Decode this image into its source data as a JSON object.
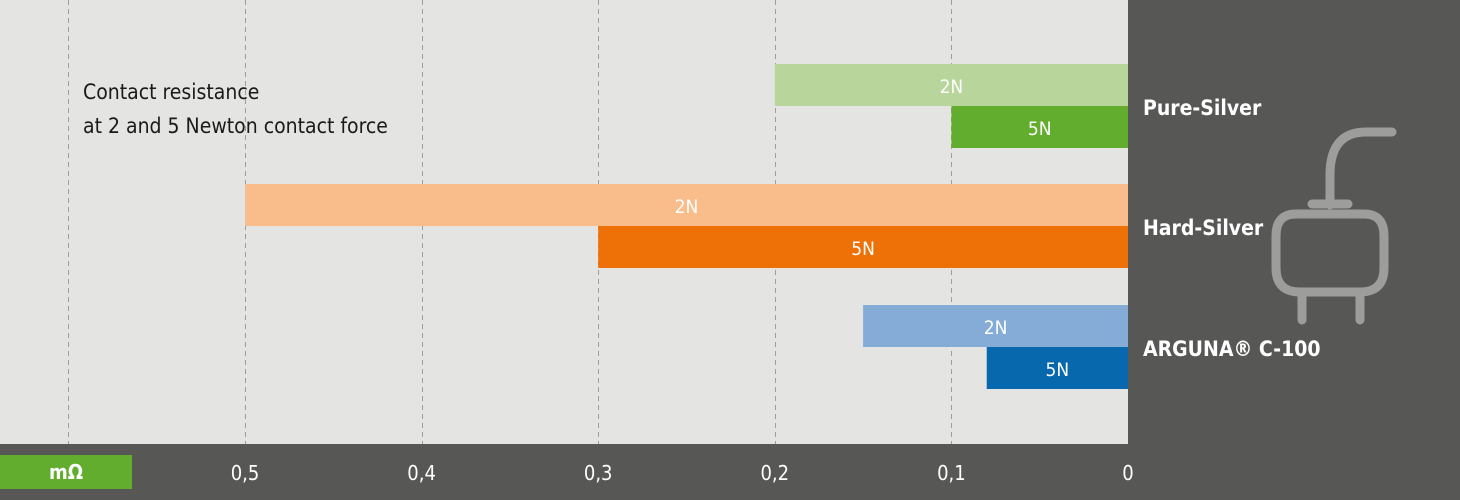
{
  "chart_data": {
    "type": "bar",
    "orientation": "horizontal",
    "x_direction": "reversed",
    "title_lines": [
      "Contact resistance",
      "at 2 and 5 Newton contact force"
    ],
    "unit": "mΩ",
    "xlim": [
      0,
      0.6
    ],
    "xticks": [
      {
        "value": 0.5,
        "label": "0,5"
      },
      {
        "value": 0.4,
        "label": "0,4"
      },
      {
        "value": 0.3,
        "label": "0,3"
      },
      {
        "value": 0.2,
        "label": "0,2"
      },
      {
        "value": 0.1,
        "label": "0,1"
      },
      {
        "value": 0,
        "label": "0"
      }
    ],
    "grid": true,
    "categories": [
      {
        "name": "Pure-Silver",
        "bars": [
          {
            "label": "2N",
            "value": 0.2,
            "color": "#b8d69b"
          },
          {
            "label": "5N",
            "value": 0.1,
            "color": "#62ad2e"
          }
        ]
      },
      {
        "name": "Hard-Silver",
        "bars": [
          {
            "label": "2N",
            "value": 0.5,
            "color": "#f8bd8b"
          },
          {
            "label": "5N",
            "value": 0.3,
            "color": "#ed7106"
          }
        ]
      },
      {
        "name": "ARGUNA® C-100",
        "bars": [
          {
            "label": "2N",
            "value": 0.15,
            "color": "#84acd6"
          },
          {
            "label": "5N",
            "value": 0.08,
            "color": "#0768ae"
          }
        ]
      }
    ]
  },
  "colors": {
    "background": "#e4e4e2",
    "panel": "#575756",
    "grid": "#9d9d9c",
    "unit_badge": "#62ad2e",
    "icon": "#9d9d9c"
  },
  "icon": "power-plug-icon"
}
